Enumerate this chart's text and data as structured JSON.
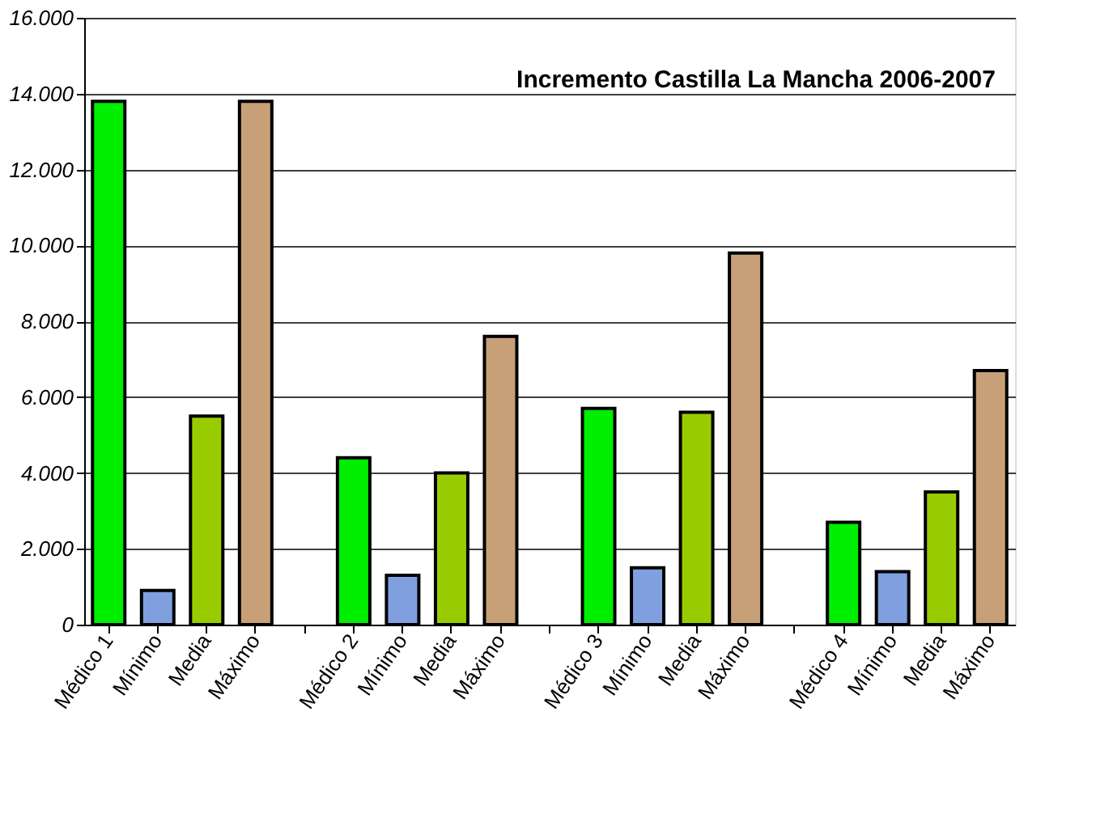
{
  "chart_data": {
    "type": "bar",
    "title": "Incremento Castilla La Mancha 2006-2007",
    "categories": [
      "Médico 1",
      "Mínimo",
      "Media",
      "Máximo",
      null,
      "Médico 2",
      "Mínimo",
      "Media",
      "Máximo",
      null,
      "Médico 3",
      "Mínimo",
      "Media",
      "Máximo",
      null,
      "Médico 4",
      "Mínimo",
      "Media",
      "Máximo"
    ],
    "values": [
      13800,
      900,
      5500,
      13800,
      null,
      4400,
      1300,
      4000,
      7600,
      null,
      5700,
      1500,
      5600,
      9800,
      null,
      2700,
      1400,
      3500,
      6700
    ],
    "colors": [
      "#00ee00",
      "#7f9fdf",
      "#99cc00",
      "#c8a078",
      "#000000",
      "#00ee00",
      "#7f9fdf",
      "#99cc00",
      "#c8a078",
      "#000000",
      "#00ee00",
      "#7f9fdf",
      "#99cc00",
      "#c8a078",
      "#000000",
      "#00ee00",
      "#7f9fdf",
      "#99cc00",
      "#c8a078"
    ],
    "ylim": [
      0,
      16000
    ],
    "yticks": [
      0,
      {
        "value": 2000,
        "label": "2.000"
      },
      {
        "value": 4000,
        "label": "4.000"
      },
      {
        "value": 6000,
        "label": "6.000"
      },
      {
        "value": 8000,
        "label": "8.000"
      },
      {
        "value": 10000,
        "label": "10.000"
      },
      {
        "value": 12000,
        "label": "12.000"
      },
      {
        "value": 14000,
        "label": "14.000"
      },
      {
        "value": 16000,
        "label": "16.000"
      }
    ],
    "grid": "y"
  }
}
